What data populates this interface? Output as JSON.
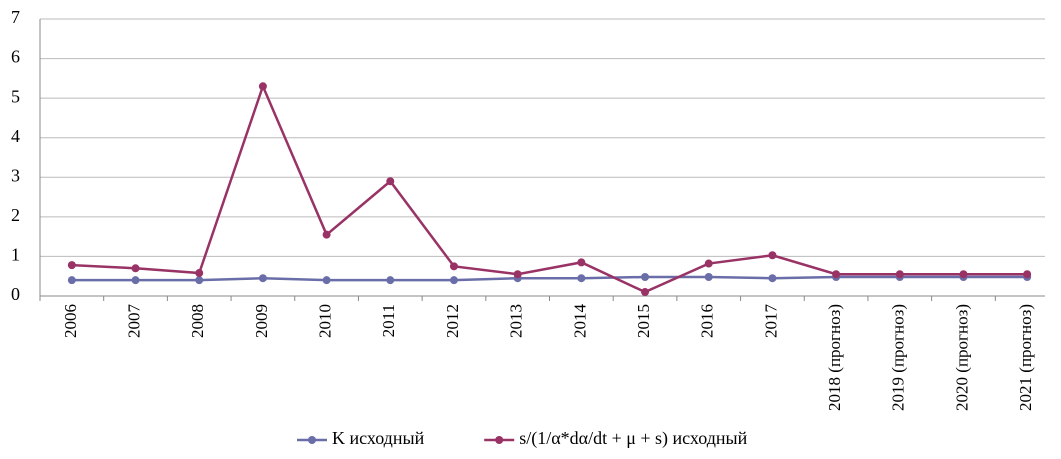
{
  "chart_data": {
    "type": "line",
    "categories": [
      "2006",
      "2007",
      "2008",
      "2009",
      "2010",
      "2011",
      "2012",
      "2013",
      "2014",
      "2015",
      "2016",
      "2017",
      "2018 (прогноз)",
      "2019 (прогноз)",
      "2020 (прогноз)",
      "2021 (прогноз)"
    ],
    "series": [
      {
        "name": "K исходный",
        "color": "#6a6ea8",
        "values": [
          0.4,
          0.4,
          0.4,
          0.45,
          0.4,
          0.4,
          0.4,
          0.45,
          0.45,
          0.48,
          0.48,
          0.45,
          0.48,
          0.48,
          0.48,
          0.48
        ]
      },
      {
        "name": "s/(1/α*dα/dt + μ + s) исходный",
        "color": "#993366",
        "values": [
          0.78,
          0.7,
          0.58,
          5.3,
          1.55,
          2.9,
          0.75,
          0.55,
          0.85,
          0.1,
          0.82,
          1.03,
          0.55,
          0.55,
          0.55,
          0.55
        ]
      }
    ],
    "ylim": [
      0,
      7
    ],
    "yticks": [
      0,
      1,
      2,
      3,
      4,
      5,
      6,
      7
    ],
    "grid": true,
    "legend": "bottom"
  }
}
